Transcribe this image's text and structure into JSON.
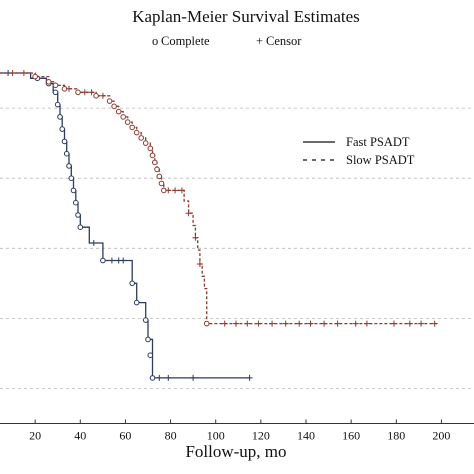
{
  "chart_data": {
    "type": "line",
    "title": "Kaplan-Meier Survival Estimates",
    "subtitle": {
      "complete_marker": "o",
      "complete_label": "Complete",
      "censor_marker": "+",
      "censor_label": "Censor"
    },
    "xlabel": "Follow-up, mo",
    "ylabel": "",
    "xlim": [
      0,
      210
    ],
    "ylim": [
      0,
      1.1
    ],
    "x_ticks": [
      20,
      40,
      60,
      80,
      100,
      120,
      140,
      160,
      180,
      200
    ],
    "y_gridlines": [
      0.1,
      0.3,
      0.5,
      0.7,
      0.9
    ],
    "grid": "horizontal",
    "legend_position": "right",
    "series": [
      {
        "name": "Fast PSADT",
        "line_style": "solid",
        "color": "#2d3b5e",
        "steps": [
          [
            0,
            1.0
          ],
          [
            18,
            0.985
          ],
          [
            25,
            0.97
          ],
          [
            28,
            0.945
          ],
          [
            30,
            0.91
          ],
          [
            31,
            0.875
          ],
          [
            32,
            0.84
          ],
          [
            33,
            0.805
          ],
          [
            34,
            0.77
          ],
          [
            35,
            0.735
          ],
          [
            36,
            0.7
          ],
          [
            37,
            0.665
          ],
          [
            38,
            0.63
          ],
          [
            39,
            0.595
          ],
          [
            40,
            0.56
          ],
          [
            44,
            0.515
          ],
          [
            50,
            0.465
          ],
          [
            63,
            0.4
          ],
          [
            65,
            0.345
          ],
          [
            69,
            0.295
          ],
          [
            70,
            0.24
          ],
          [
            72,
            0.195
          ],
          [
            72,
            0.13
          ]
        ],
        "events": [
          [
            21,
            0.985
          ],
          [
            26,
            0.97
          ],
          [
            29,
            0.945
          ],
          [
            30,
            0.91
          ],
          [
            31,
            0.875
          ],
          [
            32,
            0.84
          ],
          [
            33,
            0.805
          ],
          [
            34,
            0.77
          ],
          [
            35,
            0.735
          ],
          [
            36,
            0.7
          ],
          [
            37,
            0.665
          ],
          [
            38,
            0.63
          ],
          [
            39,
            0.595
          ],
          [
            40,
            0.56
          ],
          [
            50,
            0.465
          ],
          [
            63,
            0.4
          ],
          [
            65,
            0.345
          ],
          [
            69,
            0.295
          ],
          [
            70,
            0.24
          ],
          [
            71,
            0.195
          ],
          [
            72,
            0.13
          ]
        ],
        "censored": [
          [
            8,
            1.0
          ],
          [
            46,
            0.515
          ],
          [
            54,
            0.465
          ],
          [
            57,
            0.465
          ],
          [
            59,
            0.465
          ],
          [
            75,
            0.13
          ],
          [
            79,
            0.13
          ],
          [
            90,
            0.13
          ],
          [
            115,
            0.13
          ]
        ],
        "end_x": 115
      },
      {
        "name": "Slow PSADT",
        "line_style": "dashed",
        "color": "#8c3a30",
        "steps": [
          [
            0,
            1.0
          ],
          [
            20,
            0.99
          ],
          [
            26,
            0.975
          ],
          [
            29,
            0.965
          ],
          [
            33,
            0.955
          ],
          [
            39,
            0.945
          ],
          [
            47,
            0.935
          ],
          [
            53,
            0.92
          ],
          [
            55,
            0.905
          ],
          [
            57,
            0.89
          ],
          [
            59,
            0.875
          ],
          [
            61,
            0.86
          ],
          [
            63,
            0.845
          ],
          [
            65,
            0.83
          ],
          [
            67,
            0.815
          ],
          [
            69,
            0.8
          ],
          [
            71,
            0.785
          ],
          [
            72,
            0.765
          ],
          [
            73,
            0.745
          ],
          [
            74,
            0.725
          ],
          [
            75,
            0.705
          ],
          [
            76,
            0.685
          ],
          [
            77,
            0.665
          ],
          [
            86,
            0.635
          ],
          [
            88,
            0.6
          ],
          [
            90,
            0.565
          ],
          [
            91,
            0.53
          ],
          [
            92,
            0.495
          ],
          [
            93,
            0.455
          ],
          [
            94,
            0.42
          ],
          [
            95,
            0.385
          ],
          [
            96,
            0.3
          ],
          [
            96,
            0.285
          ]
        ],
        "events": [
          [
            20,
            0.99
          ],
          [
            26,
            0.975
          ],
          [
            29,
            0.965
          ],
          [
            33,
            0.955
          ],
          [
            39,
            0.945
          ],
          [
            47,
            0.935
          ],
          [
            53,
            0.92
          ],
          [
            55,
            0.905
          ],
          [
            57,
            0.89
          ],
          [
            59,
            0.875
          ],
          [
            61,
            0.86
          ],
          [
            63,
            0.845
          ],
          [
            65,
            0.83
          ],
          [
            67,
            0.815
          ],
          [
            69,
            0.8
          ],
          [
            71,
            0.785
          ],
          [
            72,
            0.765
          ],
          [
            73,
            0.745
          ],
          [
            74,
            0.725
          ],
          [
            75,
            0.705
          ],
          [
            76,
            0.685
          ],
          [
            77,
            0.665
          ],
          [
            96,
            0.285
          ]
        ],
        "censored": [
          [
            10,
            1.0
          ],
          [
            15,
            1.0
          ],
          [
            35,
            0.955
          ],
          [
            42,
            0.945
          ],
          [
            45,
            0.945
          ],
          [
            50,
            0.935
          ],
          [
            79,
            0.665
          ],
          [
            82,
            0.665
          ],
          [
            85,
            0.665
          ],
          [
            88,
            0.6
          ],
          [
            91,
            0.53
          ],
          [
            93,
            0.455
          ],
          [
            104,
            0.285
          ],
          [
            109,
            0.285
          ],
          [
            114,
            0.285
          ],
          [
            119,
            0.285
          ],
          [
            125,
            0.285
          ],
          [
            131,
            0.285
          ],
          [
            137,
            0.285
          ],
          [
            142,
            0.285
          ],
          [
            148,
            0.285
          ],
          [
            154,
            0.285
          ],
          [
            162,
            0.285
          ],
          [
            167,
            0.285
          ],
          [
            179,
            0.285
          ],
          [
            186,
            0.285
          ],
          [
            191,
            0.285
          ],
          [
            197,
            0.285
          ]
        ],
        "end_x": 198
      }
    ]
  }
}
